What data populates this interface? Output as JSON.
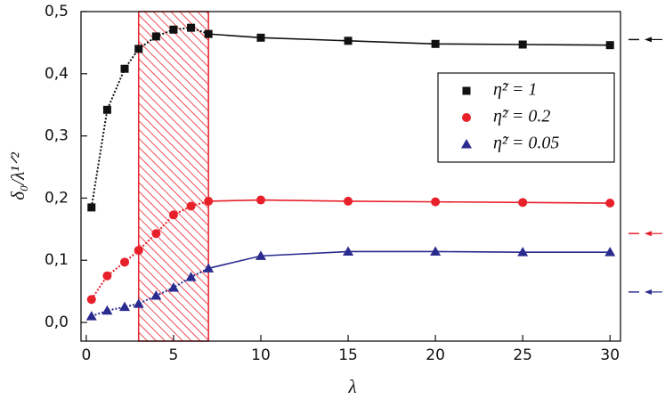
{
  "chart_data": {
    "type": "scatter",
    "x_label": "λ",
    "y_label": "δ₀/λ¹ᐟ²",
    "x": [
      0.3,
      1.2,
      2.2,
      3,
      4,
      5,
      6,
      7,
      10,
      15,
      20,
      25,
      30
    ],
    "series": [
      {
        "name": "η̃² = 1",
        "color": "#111111",
        "marker": "square",
        "values": [
          0.185,
          0.342,
          0.408,
          0.44,
          0.46,
          0.471,
          0.474,
          0.464,
          0.458,
          0.453,
          0.448,
          0.447,
          0.446
        ]
      },
      {
        "name": "η̃² = 0.2",
        "color": "#e8202a",
        "marker": "circle",
        "values": [
          0.037,
          0.075,
          0.097,
          0.116,
          0.143,
          0.173,
          0.187,
          0.195,
          0.197,
          0.195,
          0.194,
          0.193,
          0.192
        ]
      },
      {
        "name": "η̃² = 0.05",
        "color": "#2b2b8f",
        "marker": "triangle",
        "values": [
          0.01,
          0.019,
          0.025,
          0.03,
          0.043,
          0.056,
          0.073,
          0.087,
          0.107,
          0.114,
          0.114,
          0.113,
          0.113
        ]
      }
    ],
    "asymptotes": [
      0.455,
      0.143,
      0.049
    ],
    "highlight_xrange": [
      3,
      7
    ],
    "xlim": [
      -0.3,
      30.6
    ],
    "ylim": [
      -0.03,
      0.5
    ],
    "xticks": [
      0,
      5,
      10,
      15,
      20,
      25,
      30
    ],
    "yticks": [
      {
        "value": 0,
        "label": "0,0"
      },
      {
        "value": 0.1,
        "label": "0,1"
      },
      {
        "value": 0.2,
        "label": "0,2"
      },
      {
        "value": 0.3,
        "label": "0,3"
      },
      {
        "value": 0.4,
        "label": "0,4"
      },
      {
        "value": 0.5,
        "label": "0,5"
      }
    ],
    "legend": "upper right"
  }
}
